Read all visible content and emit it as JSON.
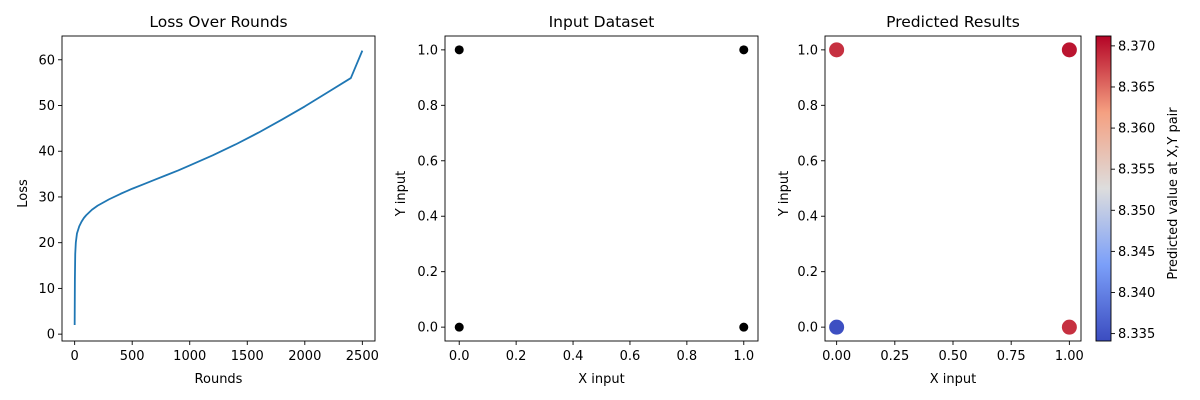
{
  "chart_data": [
    {
      "type": "line",
      "title": "Loss Over Rounds",
      "xlabel": "Rounds",
      "ylabel": "Loss",
      "xlim": [
        -110,
        2610
      ],
      "ylim": [
        -1.5,
        65.2
      ],
      "xticks": [
        0,
        500,
        1000,
        1500,
        2000,
        2500
      ],
      "yticks": [
        0,
        10,
        20,
        30,
        40,
        50,
        60
      ],
      "series": [
        {
          "color": "#1f77b4",
          "x": [
            0,
            2,
            5,
            10,
            20,
            40,
            60,
            80,
            100,
            150,
            200,
            300,
            400,
            500,
            600,
            700,
            800,
            900,
            1000,
            1200,
            1400,
            1600,
            1800,
            2000,
            2200,
            2400,
            2500
          ],
          "y": [
            2.0,
            12.0,
            17.5,
            20.0,
            22.0,
            23.6,
            24.6,
            25.4,
            26.0,
            27.2,
            28.1,
            29.5,
            30.7,
            31.8,
            32.8,
            33.8,
            34.8,
            35.8,
            36.9,
            39.1,
            41.5,
            44.1,
            46.9,
            49.8,
            52.9,
            56.0,
            62.0
          ]
        }
      ]
    },
    {
      "type": "scatter",
      "title": "Input Dataset",
      "xlabel": "X input",
      "ylabel": "Y input",
      "xlim": [
        -0.05,
        1.05
      ],
      "ylim": [
        -0.05,
        1.05
      ],
      "xticks": [
        "0.0",
        "0.2",
        "0.4",
        "0.6",
        "0.8",
        "1.0"
      ],
      "yticks": [
        "0.0",
        "0.2",
        "0.4",
        "0.6",
        "0.8",
        "1.0"
      ],
      "points": [
        {
          "x": 0,
          "y": 0,
          "color": "#000000"
        },
        {
          "x": 0,
          "y": 1,
          "color": "#000000"
        },
        {
          "x": 1,
          "y": 0,
          "color": "#000000"
        },
        {
          "x": 1,
          "y": 1,
          "color": "#000000"
        }
      ]
    },
    {
      "type": "scatter",
      "title": "Predicted Results",
      "xlabel": "X input",
      "ylabel": "Y input",
      "xlim": [
        -0.05,
        1.05
      ],
      "ylim": [
        -0.05,
        1.05
      ],
      "xticks": [
        "0.00",
        "0.25",
        "0.50",
        "0.75",
        "1.00"
      ],
      "yticks": [
        "0.0",
        "0.2",
        "0.4",
        "0.6",
        "0.8",
        "1.0"
      ],
      "colormap": "coolwarm",
      "points": [
        {
          "x": 0,
          "y": 0,
          "value": 8.3344
        },
        {
          "x": 0,
          "y": 1,
          "value": 8.3686
        },
        {
          "x": 1,
          "y": 0,
          "value": 8.3686
        },
        {
          "x": 1,
          "y": 1,
          "value": 8.3702
        }
      ],
      "colorbar": {
        "label": "Predicted value at X,Y pair",
        "range": [
          8.3341,
          8.3712
        ],
        "ticks": [
          "8.335",
          "8.340",
          "8.345",
          "8.350",
          "8.355",
          "8.360",
          "8.365",
          "8.370"
        ]
      }
    }
  ]
}
